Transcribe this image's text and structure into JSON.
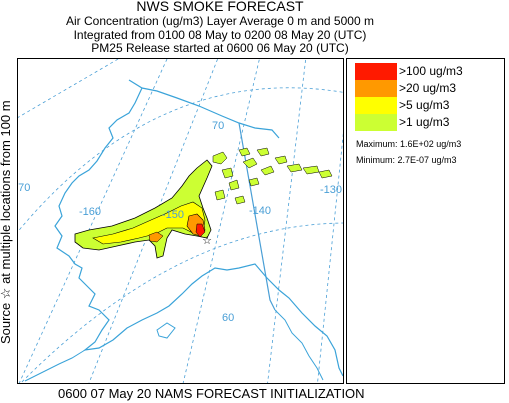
{
  "title": {
    "main": "NWS SMOKE FORECAST",
    "line2": "Air Concentration (ug/m3) Layer Average    0 m and  5000 m",
    "line3": "Integrated from 0100 08 May to 0200 08 May 20 (UTC)",
    "line4": "PM25 Release started at 0600 06 May 20 (UTC)"
  },
  "side_label": "Source ☆ at multiple locations   from   100 m",
  "footer": "0600 07 May 20 NAMS FORECAST INITIALIZATION",
  "legend": {
    "items": [
      {
        "label": ">100 ug/m3",
        "color": "#ff1a00"
      },
      {
        "label": ">20 ug/m3",
        "color": "#ff9900"
      },
      {
        "label": ">5 ug/m3",
        "color": "#ffff00"
      },
      {
        "label": ">1 ug/m3",
        "color": "#ccff33"
      }
    ],
    "maximum": "Maximum: 1.6E+02 ug/m3",
    "minimum": "Minimum: 2.7E-07 ug/m3"
  },
  "map_labels": {
    "lat70": "70",
    "lat60": "60",
    "lon170": "170",
    "lon160": "-160",
    "lon150": "-150",
    "lon140": "-140",
    "lon130": "-130"
  },
  "colors": {
    "coastline": "#3aa3d9",
    "gridline": "#4a9fd6",
    "border": "#4a9fd6"
  }
}
